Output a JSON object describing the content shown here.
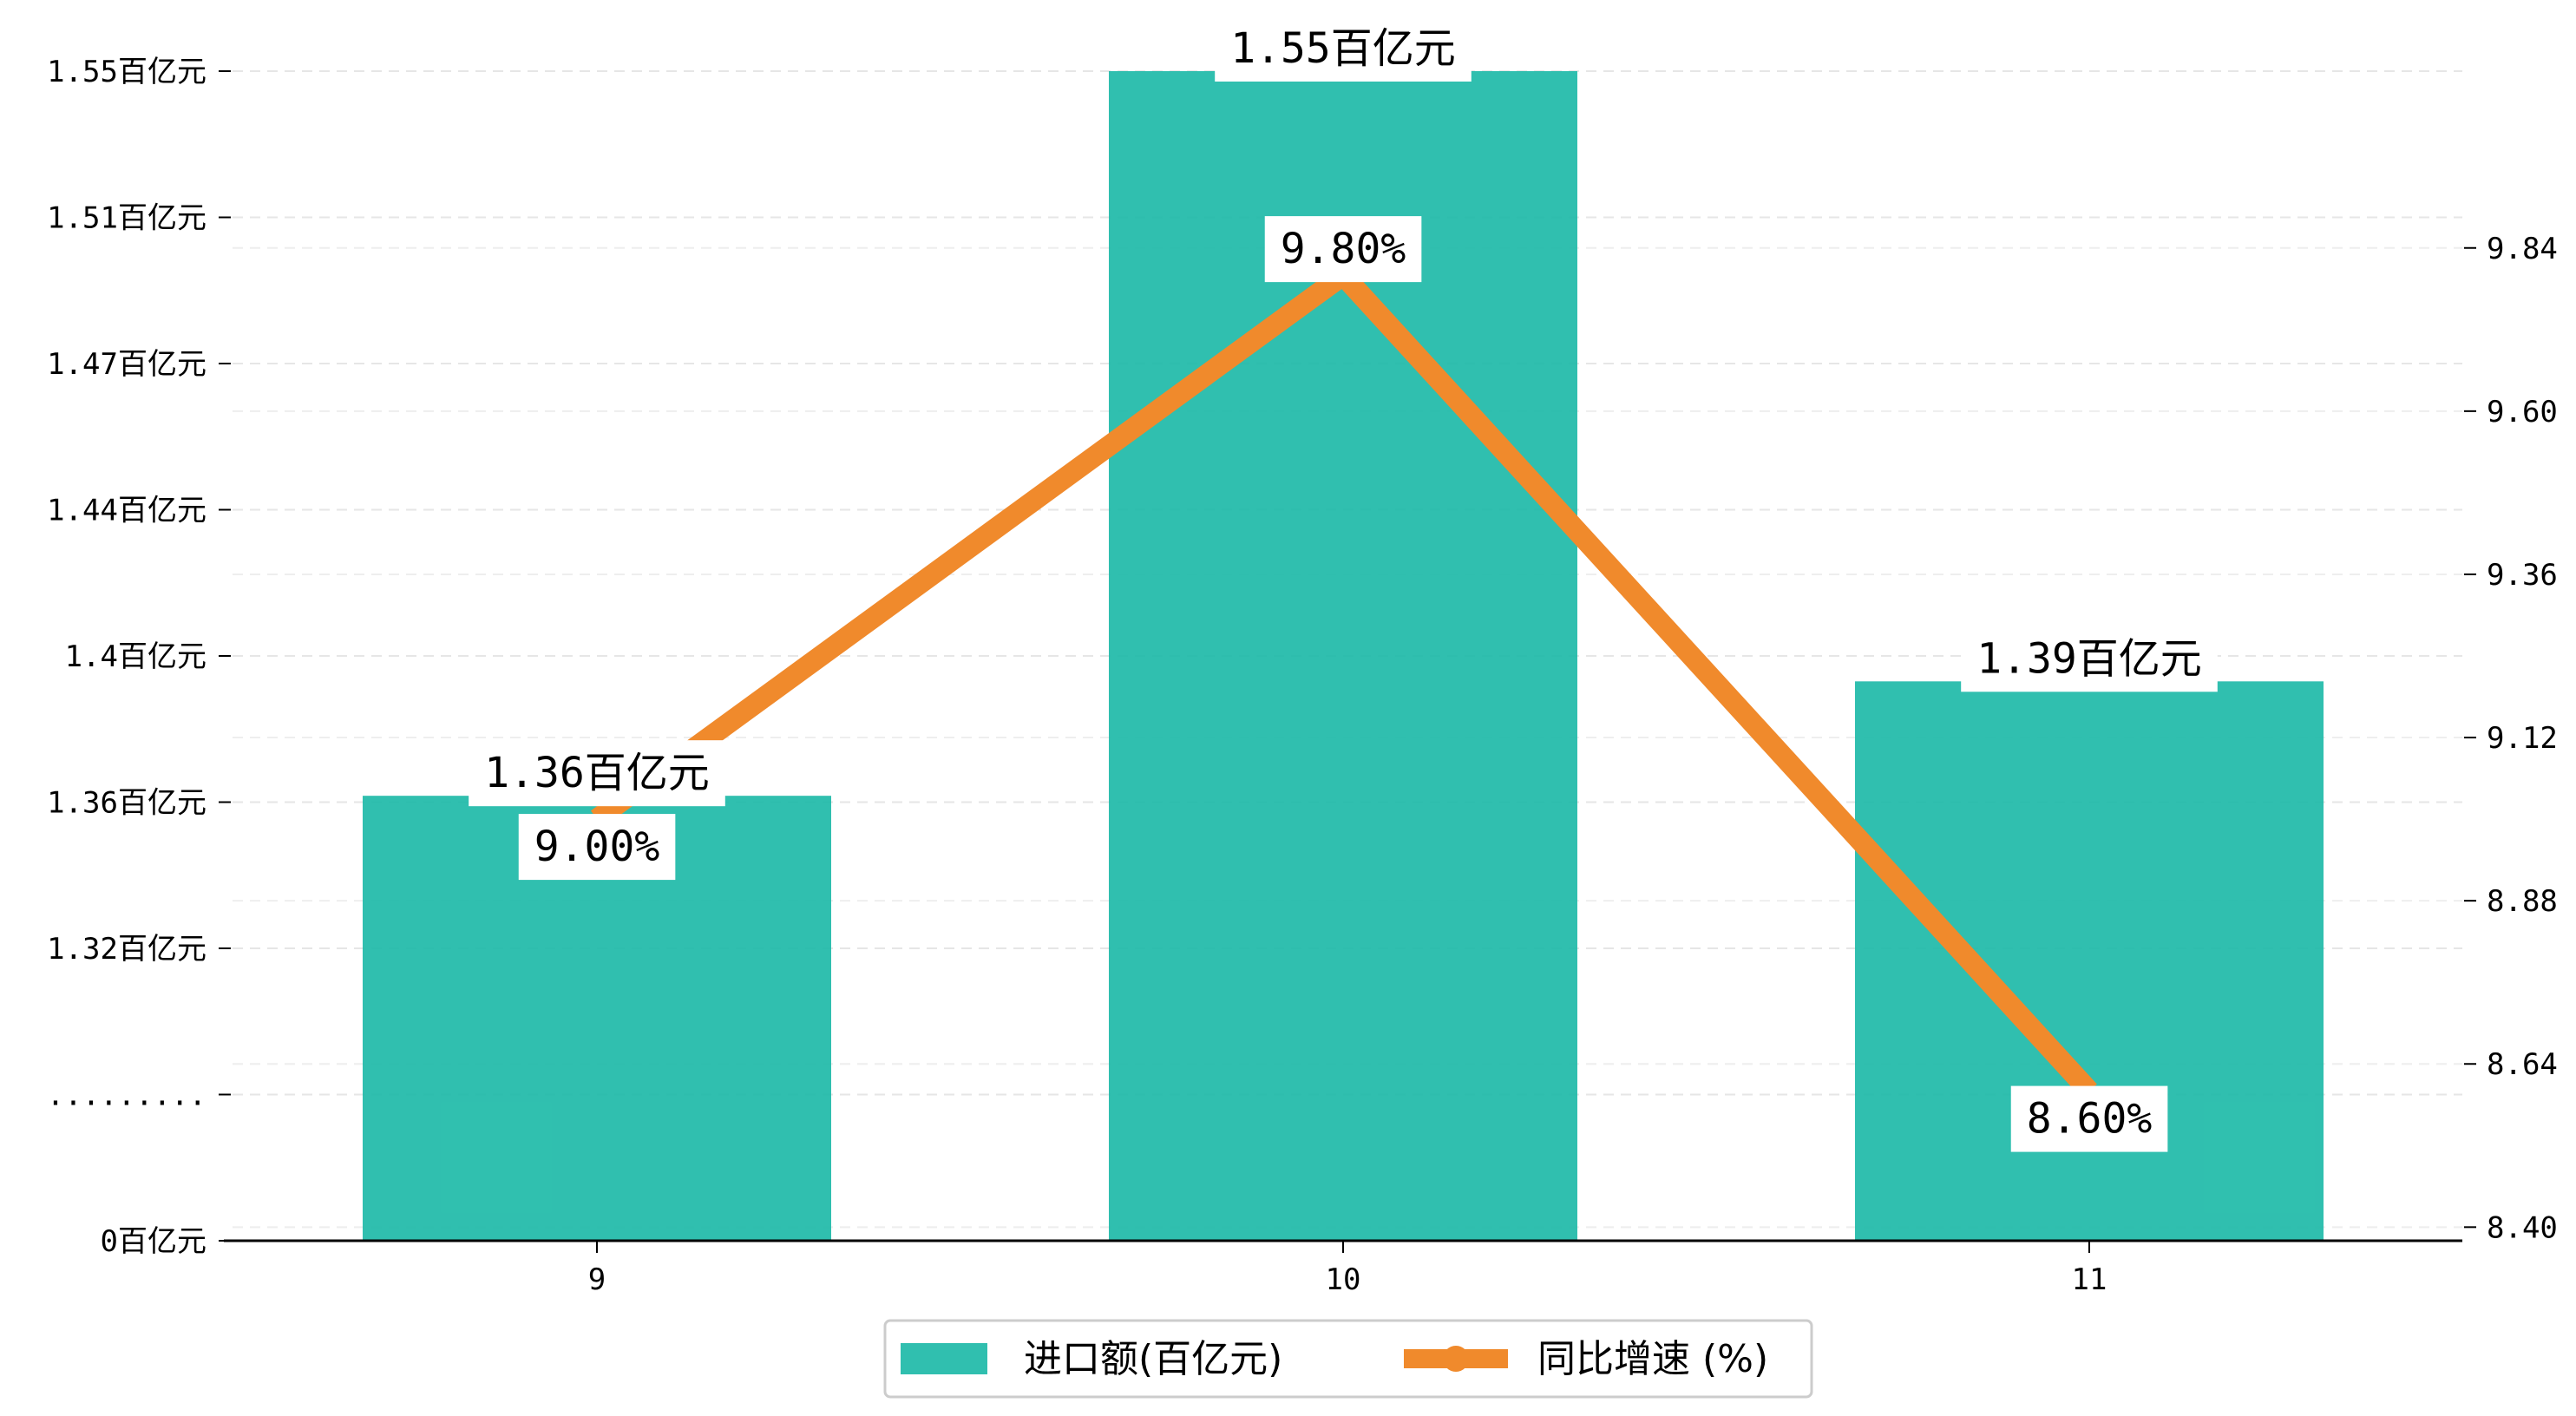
{
  "chart_data": {
    "type": "bar",
    "categories": [
      "9",
      "10",
      "11"
    ],
    "series": [
      {
        "name": "进口额(百亿元)",
        "type": "bar",
        "axis": "left",
        "values": [
          1.36,
          1.55,
          1.39
        ],
        "labels": [
          "1.36百亿元",
          "1.55百亿元",
          "1.39百亿元"
        ],
        "color": "#1ebaa8"
      },
      {
        "name": "同比增速 (%)",
        "type": "line",
        "axis": "right",
        "values": [
          9.0,
          9.8,
          8.6
        ],
        "labels": [
          "9.00%",
          "9.80%",
          "8.60%"
        ],
        "color": "#f08a2c"
      }
    ],
    "y_left": {
      "ticks": [
        {
          "value": 0,
          "label": "0百亿元"
        },
        {
          "value": null,
          "label": "........."
        },
        {
          "value": 1.32,
          "label": "1.32百亿元"
        },
        {
          "value": 1.36,
          "label": "1.36百亿元"
        },
        {
          "value": 1.4,
          "label": "1.4百亿元"
        },
        {
          "value": 1.44,
          "label": "1.44百亿元"
        },
        {
          "value": 1.47,
          "label": "1.47百亿元"
        },
        {
          "value": 1.51,
          "label": "1.51百亿元"
        },
        {
          "value": 1.55,
          "label": "1.55百亿元"
        }
      ],
      "broken": true
    },
    "y_right": {
      "ticks": [
        8.4,
        8.64,
        8.88,
        9.12,
        9.36,
        9.6,
        9.84
      ],
      "tick_labels": [
        "8.40",
        "8.64",
        "8.88",
        "9.12",
        "9.36",
        "9.60",
        "9.84"
      ],
      "ylim": [
        8.38,
        10.1
      ]
    },
    "grid": true,
    "legend_position": "bottom-center"
  }
}
